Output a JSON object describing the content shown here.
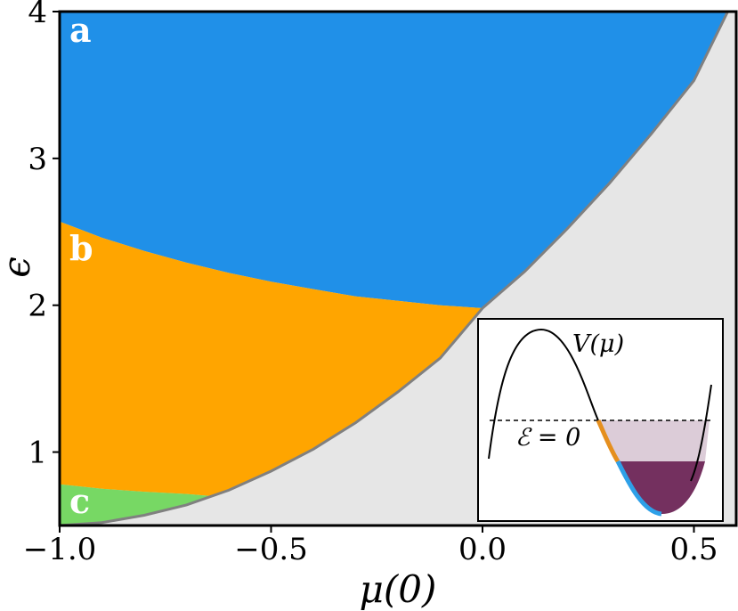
{
  "chart_data": {
    "type": "area",
    "xlabel": "μ(0)",
    "ylabel": "ϵ",
    "xlim": [
      -1.0,
      0.6
    ],
    "ylim": [
      0.5,
      4.0
    ],
    "xticks": [
      -1.0,
      -0.5,
      0.0,
      0.5
    ],
    "xtick_labels": [
      "−1.0",
      "−0.5",
      "0.0",
      "0.5"
    ],
    "yticks": [
      1,
      2,
      3,
      4
    ],
    "ytick_labels": [
      "1",
      "2",
      "3",
      "4"
    ],
    "grid": false,
    "colors": {
      "region_a": "#2090E8",
      "region_b": "#FFA500",
      "region_c": "#77D864",
      "forbidden": "#E6E6E6",
      "boundary": "#808080",
      "inset_light_fill": "#DCCCD8",
      "inset_dark_fill": "#74305F",
      "inset_orange": "#E58F1E",
      "inset_blue": "#2EA0E8"
    },
    "boundary_curve": {
      "x": [
        -1.0,
        -0.9,
        -0.8,
        -0.7,
        -0.6,
        -0.5,
        -0.4,
        -0.3,
        -0.2,
        -0.1,
        0.0,
        0.1,
        0.2,
        0.3,
        0.4,
        0.5,
        0.58
      ],
      "y": [
        0.5,
        0.52,
        0.57,
        0.64,
        0.74,
        0.87,
        1.02,
        1.2,
        1.41,
        1.64,
        1.98,
        2.23,
        2.52,
        2.83,
        3.17,
        3.53,
        4.0
      ]
    },
    "ab_boundary": {
      "x": [
        -1.0,
        -0.9,
        -0.8,
        -0.7,
        -0.6,
        -0.5,
        -0.4,
        -0.3,
        -0.2,
        -0.1,
        0.0
      ],
      "y": [
        2.57,
        2.46,
        2.37,
        2.29,
        2.22,
        2.16,
        2.11,
        2.06,
        2.03,
        2.0,
        1.98
      ]
    },
    "bc_boundary": {
      "x": [
        -1.0,
        -0.9,
        -0.8,
        -0.7,
        -0.64
      ],
      "y": [
        0.78,
        0.75,
        0.73,
        0.715,
        0.7
      ]
    },
    "region_labels": [
      "a",
      "b",
      "c"
    ],
    "inset": {
      "curve_label": "V(μ)",
      "level_label": "ℰ = 0"
    }
  }
}
